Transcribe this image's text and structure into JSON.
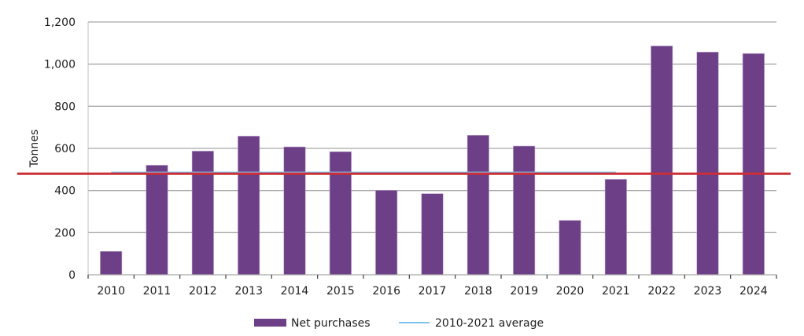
{
  "chart_data": {
    "type": "bar",
    "title": "",
    "xlabel": "",
    "ylabel": "Tonnes",
    "ylim": [
      0,
      1200
    ],
    "yticks": [
      0,
      200,
      400,
      600,
      800,
      1000,
      1200
    ],
    "ytick_labels": [
      "0",
      "200",
      "400",
      "600",
      "800",
      "1,000",
      "1,200"
    ],
    "grid": true,
    "categories": [
      "2010",
      "2011",
      "2012",
      "2013",
      "2014",
      "2015",
      "2016",
      "2017",
      "2018",
      "2019",
      "2020",
      "2021",
      "2022",
      "2023",
      "2024"
    ],
    "series": [
      {
        "name": "Net purchases",
        "kind": "bar",
        "color": "#6c3f86",
        "values": [
          111,
          520,
          587,
          658,
          607,
          584,
          401,
          385,
          662,
          611,
          258,
          453,
          1086,
          1057,
          1050
        ]
      },
      {
        "name": "2010-2021 average",
        "kind": "line",
        "color": "#7cc4ee",
        "from": "2010",
        "to": "2021",
        "value": 486
      }
    ],
    "annotations": [
      {
        "kind": "horizontal-line",
        "color": "#cc2f35",
        "value": 480
      }
    ],
    "legend": {
      "position": "bottom-center",
      "items": [
        {
          "label": "Net purchases",
          "marker": "box",
          "color": "#6c3f86"
        },
        {
          "label": "2010-2021 average",
          "marker": "line",
          "color": "#7cc4ee"
        }
      ]
    }
  }
}
